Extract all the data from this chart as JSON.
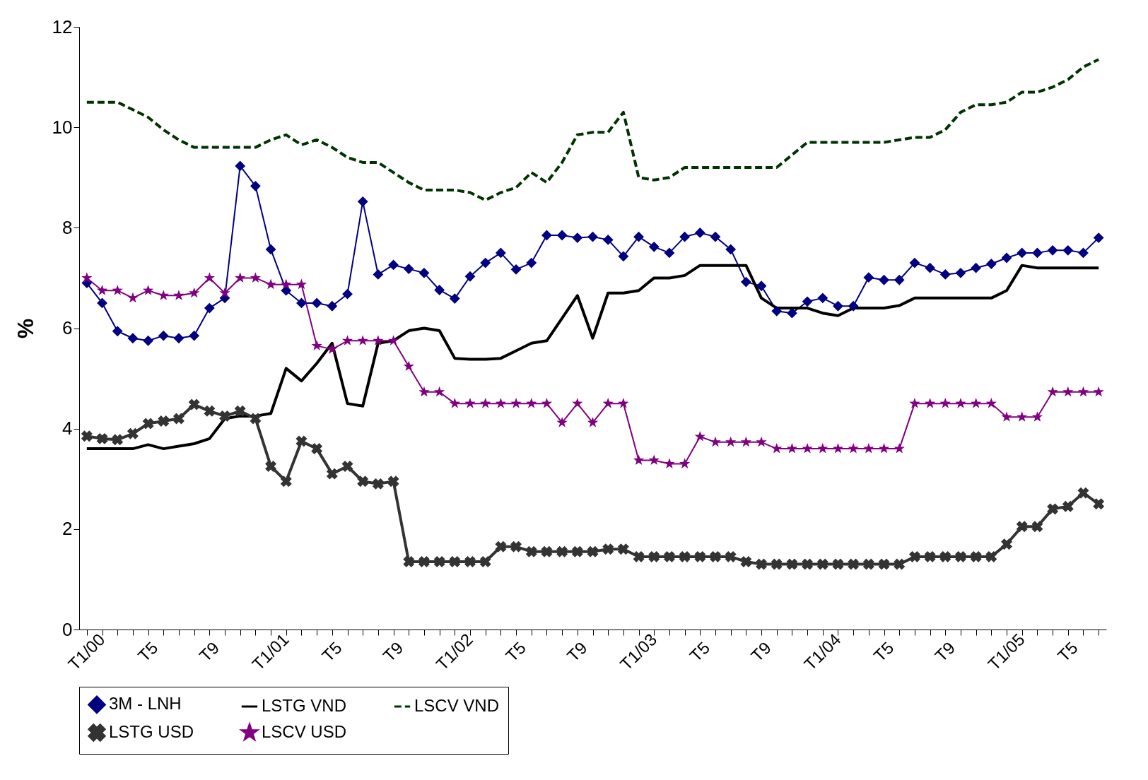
{
  "chart_data": {
    "type": "line",
    "ylabel": "%",
    "ylim": [
      0,
      12
    ],
    "yticks": [
      0,
      2,
      4,
      6,
      8,
      10,
      12
    ],
    "grid": false,
    "legend": "bottom",
    "categories": [
      "T1/00",
      null,
      null,
      null,
      "T5",
      null,
      null,
      null,
      "T9",
      null,
      null,
      null,
      "T1/01",
      null,
      null,
      null,
      "T5",
      null,
      null,
      null,
      "T9",
      null,
      null,
      null,
      "T1/02",
      null,
      null,
      null,
      "T5",
      null,
      null,
      null,
      "T9",
      null,
      null,
      null,
      "T1/03",
      null,
      null,
      null,
      "T5",
      null,
      null,
      null,
      "T9",
      null,
      null,
      null,
      "T1/04",
      null,
      null,
      null,
      "T5",
      null,
      null,
      null,
      "T9",
      null,
      null,
      null,
      "T1/05",
      null,
      null,
      null,
      "T5",
      null,
      null
    ],
    "series": [
      {
        "name": "3M - LNH",
        "color": "#000080",
        "marker": "diamond",
        "line_style": "solid",
        "values": [
          6.9,
          6.5,
          5.94,
          5.8,
          5.75,
          5.85,
          5.8,
          5.85,
          6.4,
          6.6,
          9.23,
          8.83,
          7.57,
          6.75,
          6.5,
          6.5,
          6.44,
          6.68,
          8.52,
          7.07,
          7.26,
          7.18,
          7.1,
          6.76,
          6.59,
          7.03,
          7.3,
          7.5,
          7.17,
          7.3,
          7.85,
          7.85,
          7.8,
          7.82,
          7.76,
          7.43,
          7.82,
          7.62,
          7.5,
          7.82,
          7.9,
          7.82,
          7.57,
          6.92,
          6.84,
          6.34,
          6.3,
          6.53,
          6.6,
          6.44,
          6.44,
          7.01,
          6.96,
          6.96,
          7.3,
          7.2,
          7.07,
          7.1,
          7.2,
          7.28,
          7.4,
          7.5,
          7.5,
          7.55,
          7.55,
          7.5,
          7.8
        ]
      },
      {
        "name": "LSTG VND",
        "color": "#000000",
        "marker": "none",
        "line_style": "solid",
        "values": [
          3.6,
          3.6,
          3.6,
          3.6,
          3.68,
          3.6,
          3.65,
          3.7,
          3.8,
          4.2,
          4.25,
          4.25,
          4.3,
          5.2,
          4.95,
          5.3,
          5.7,
          4.5,
          4.45,
          5.7,
          5.75,
          5.95,
          6.0,
          5.95,
          5.4,
          5.38,
          5.38,
          5.4,
          5.55,
          5.7,
          5.75,
          6.2,
          6.65,
          5.8,
          6.7,
          6.7,
          6.75,
          7.0,
          7.0,
          7.05,
          7.25,
          7.25,
          7.25,
          7.25,
          6.6,
          6.4,
          6.4,
          6.4,
          6.3,
          6.25,
          6.4,
          6.4,
          6.4,
          6.45,
          6.6,
          6.6,
          6.6,
          6.6,
          6.6,
          6.6,
          6.75,
          7.25,
          7.2,
          7.2,
          7.2,
          7.2,
          7.2
        ]
      },
      {
        "name": "LSCV VND",
        "color": "#003300",
        "marker": "none",
        "line_style": "dashed",
        "values": [
          10.5,
          10.5,
          10.5,
          10.35,
          10.2,
          9.95,
          9.75,
          9.6,
          9.6,
          9.6,
          9.6,
          9.6,
          9.75,
          9.85,
          9.65,
          9.75,
          9.6,
          9.4,
          9.3,
          9.3,
          9.1,
          8.9,
          8.75,
          8.75,
          8.75,
          8.7,
          8.55,
          8.7,
          8.8,
          9.1,
          8.9,
          9.3,
          9.85,
          9.9,
          9.9,
          10.3,
          9.0,
          8.95,
          9.0,
          9.2,
          9.2,
          9.2,
          9.2,
          9.2,
          9.2,
          9.2,
          9.45,
          9.7,
          9.7,
          9.7,
          9.7,
          9.7,
          9.7,
          9.75,
          9.8,
          9.8,
          9.95,
          10.3,
          10.45,
          10.45,
          10.5,
          10.7,
          10.7,
          10.8,
          10.95,
          11.2,
          11.35
        ]
      },
      {
        "name": "LSTG USD",
        "color": "#333333",
        "marker": "cross",
        "line_style": "solid",
        "values": [
          3.85,
          3.8,
          3.78,
          3.9,
          4.1,
          4.15,
          4.2,
          4.48,
          4.35,
          4.25,
          4.35,
          4.2,
          3.25,
          2.95,
          3.75,
          3.6,
          3.1,
          3.25,
          2.95,
          2.9,
          2.95,
          1.35,
          1.35,
          1.35,
          1.35,
          1.35,
          1.35,
          1.65,
          1.65,
          1.55,
          1.55,
          1.55,
          1.55,
          1.55,
          1.6,
          1.6,
          1.45,
          1.45,
          1.45,
          1.45,
          1.45,
          1.45,
          1.45,
          1.35,
          1.3,
          1.3,
          1.3,
          1.3,
          1.3,
          1.3,
          1.3,
          1.3,
          1.3,
          1.3,
          1.45,
          1.45,
          1.45,
          1.45,
          1.45,
          1.45,
          1.7,
          2.05,
          2.05,
          2.4,
          2.45,
          2.72,
          2.5
        ]
      },
      {
        "name": "LSCV USD",
        "color": "#800080",
        "marker": "star",
        "line_style": "solid",
        "values": [
          7.0,
          6.75,
          6.75,
          6.6,
          6.75,
          6.65,
          6.65,
          6.7,
          7.0,
          6.7,
          7.0,
          7.0,
          6.87,
          6.87,
          6.87,
          5.65,
          5.58,
          5.75,
          5.75,
          5.75,
          5.75,
          5.24,
          4.73,
          4.73,
          4.5,
          4.5,
          4.5,
          4.5,
          4.5,
          4.5,
          4.5,
          4.12,
          4.5,
          4.12,
          4.5,
          4.5,
          3.37,
          3.37,
          3.3,
          3.3,
          3.84,
          3.73,
          3.73,
          3.73,
          3.73,
          3.6,
          3.6,
          3.6,
          3.6,
          3.6,
          3.6,
          3.6,
          3.6,
          3.6,
          4.5,
          4.5,
          4.5,
          4.5,
          4.5,
          4.5,
          4.23,
          4.23,
          4.23,
          4.73,
          4.73,
          4.73,
          4.73
        ]
      }
    ]
  }
}
